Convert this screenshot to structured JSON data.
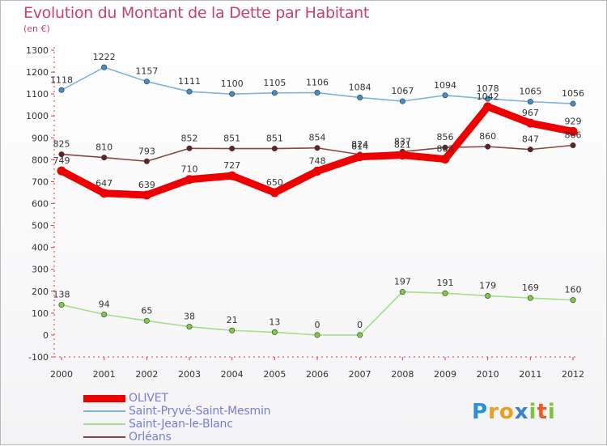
{
  "header": {
    "title": "Evolution du Montant de la Dette par Habitant",
    "subtitle": "(en €)"
  },
  "brand": {
    "letters": [
      "P",
      "r",
      "o",
      "x",
      "i",
      "t",
      "i"
    ],
    "letter_colors": [
      "#2d8fd8",
      "#e8a020",
      "#e8a020",
      "#3a7fd0",
      "#7cc43c",
      "#e85c28",
      "#7cc43c"
    ]
  },
  "chart_data": {
    "type": "line",
    "title": "Evolution du Montant de la Dette par Habitant",
    "subtitle": "(en €)",
    "xlabel": "",
    "ylabel": "",
    "categories": [
      "2000",
      "2001",
      "2002",
      "2003",
      "2004",
      "2005",
      "2006",
      "2007",
      "2008",
      "2009",
      "2010",
      "2011",
      "2012"
    ],
    "ylim": [
      -100,
      1300
    ],
    "yticks": [
      "-100",
      "0",
      "100",
      "200",
      "300",
      "400",
      "500",
      "600",
      "700",
      "800",
      "900",
      "1000",
      "1100",
      "1200",
      "1300"
    ],
    "grid": false,
    "legend_position": "bottom-left",
    "series": [
      {
        "name": "OLIVET",
        "color": "#ee0000",
        "emphasis": true,
        "values": [
          749,
          647,
          639,
          710,
          727,
          650,
          748,
          814,
          821,
          803,
          1042,
          967,
          929
        ],
        "labels": [
          "749",
          "647",
          "639",
          "710",
          "727",
          "650",
          "748",
          "814",
          "821",
          "803",
          "1042",
          "967",
          "929"
        ]
      },
      {
        "name": "Saint-Pryvé-Saint-Mesmin",
        "color": "#7fb2dc",
        "marker_color": "#3f8fd0",
        "values": [
          1118,
          1222,
          1157,
          1111,
          1100,
          1105,
          1106,
          1084,
          1067,
          1094,
          1078,
          1065,
          1056
        ],
        "labels": [
          "1118",
          "1222",
          "1157",
          "1111",
          "1100",
          "1105",
          "1106",
          "1084",
          "1067",
          "1094",
          "1078",
          "1065",
          "1056"
        ]
      },
      {
        "name": "Saint-Jean-le-Blanc",
        "color": "#a6dd8a",
        "marker_color": "#7ccc44",
        "values": [
          138,
          94,
          65,
          38,
          21,
          13,
          0,
          0,
          197,
          191,
          179,
          169,
          160
        ],
        "labels": [
          "138",
          "94",
          "65",
          "38",
          "21",
          "13",
          "0",
          "0",
          "197",
          "191",
          "179",
          "169",
          "160"
        ]
      },
      {
        "name": "Orléans",
        "color": "#8a4444",
        "marker_color": "#6a2020",
        "values": [
          825,
          810,
          793,
          852,
          851,
          851,
          854,
          824,
          837,
          856,
          860,
          847,
          866
        ],
        "labels": [
          "825",
          "810",
          "793",
          "852",
          "851",
          "851",
          "854",
          "824",
          "837",
          "856",
          "860",
          "847",
          "866"
        ]
      }
    ]
  }
}
